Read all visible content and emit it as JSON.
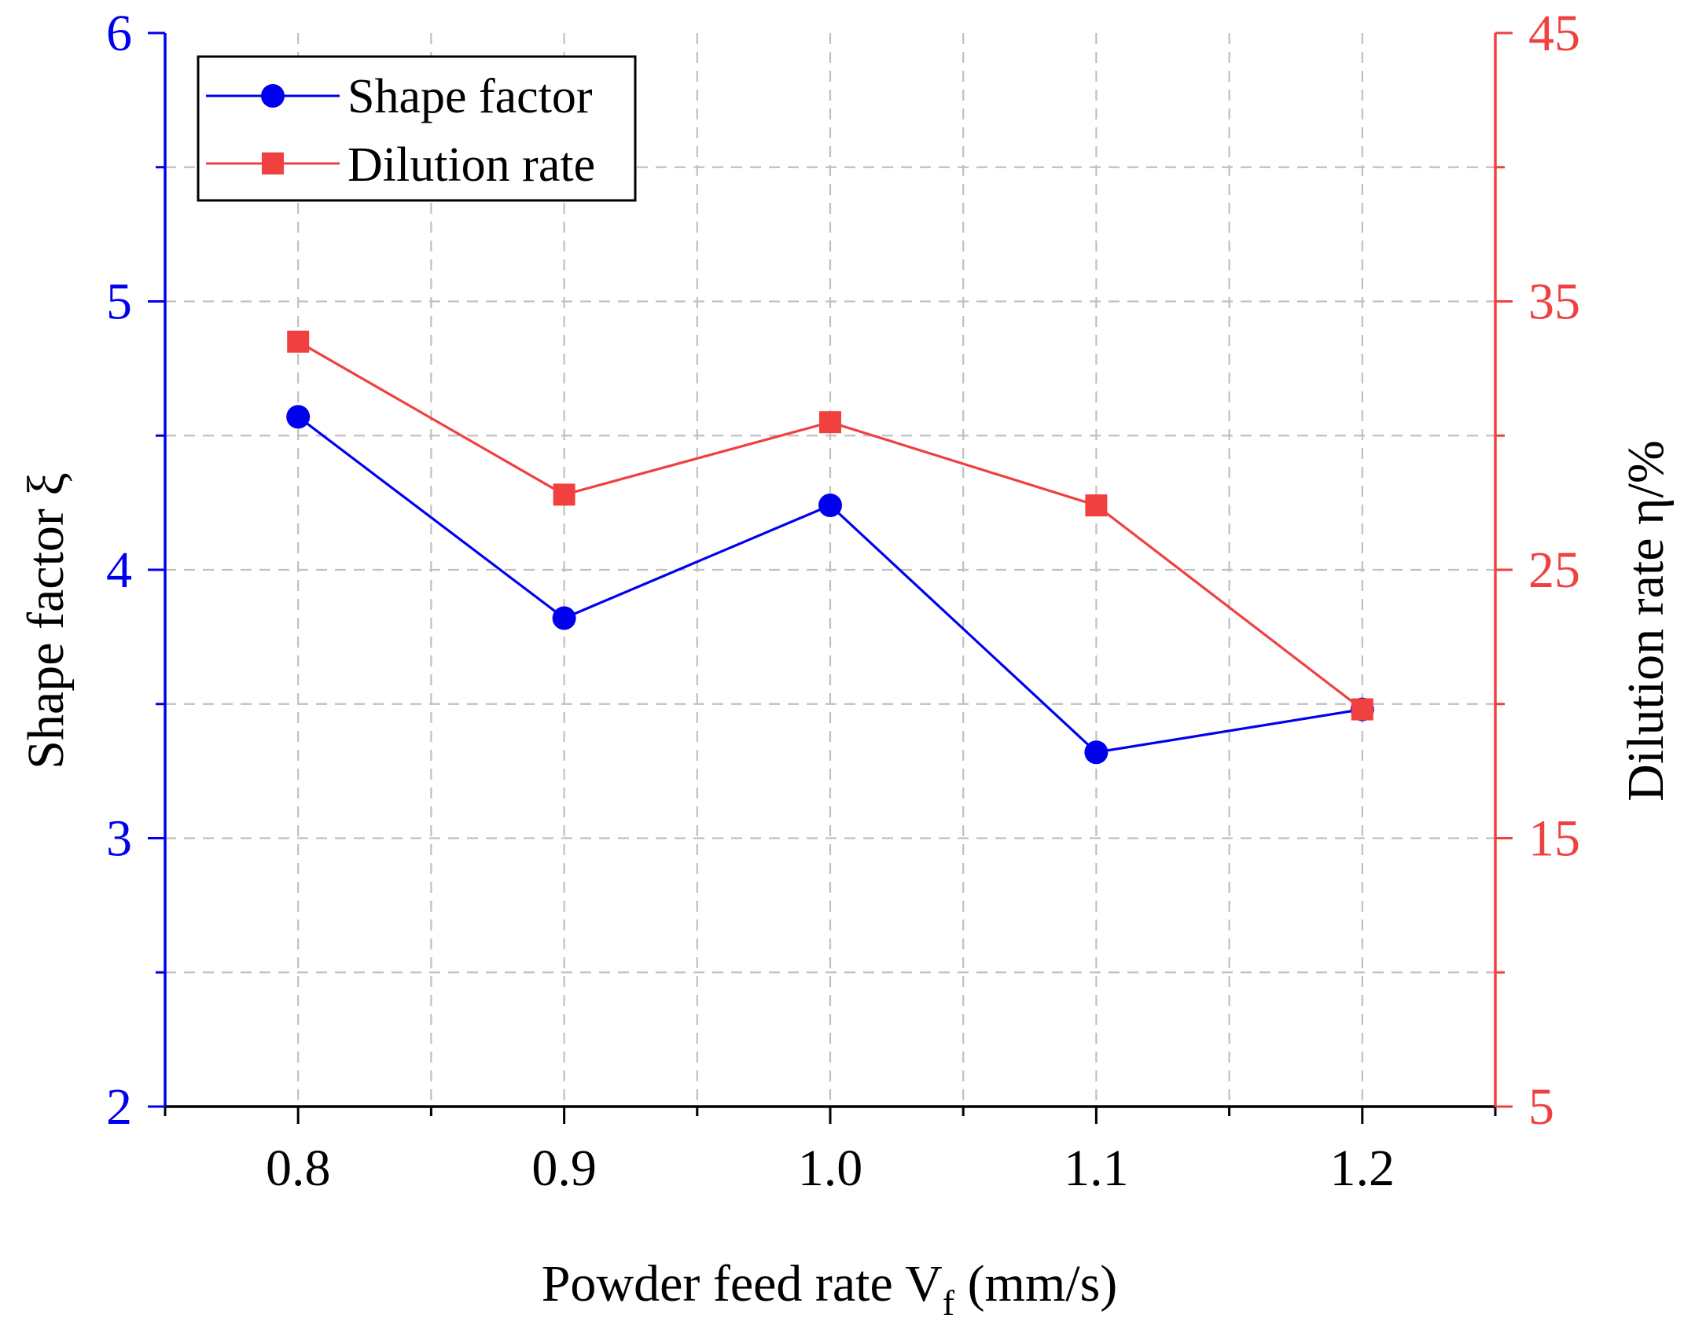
{
  "chart_data": {
    "type": "line",
    "title": "",
    "xlabel": "Powder feed rate V",
    "xlabel_sub": "f",
    "xlabel_unit": " (mm/s)",
    "ylabel_left": "Shape factor ξ",
    "ylabel_right": "Dilution rate η/%",
    "xlim": [
      0.75,
      1.25
    ],
    "ylim_left": [
      2,
      6
    ],
    "ylim_right": [
      5,
      45
    ],
    "x": [
      0.8,
      0.9,
      1.0,
      1.1,
      1.2
    ],
    "x_tick_labels": [
      "0.8",
      "0.9",
      "1.0",
      "1.1",
      "1.2"
    ],
    "y_left_tick_labels": [
      "2",
      "3",
      "4",
      "5",
      "6"
    ],
    "y_right_tick_labels": [
      "5",
      "15",
      "25",
      "35",
      "45"
    ],
    "grid": true,
    "legend_position": "top-left",
    "series": [
      {
        "name": "Shape factor",
        "axis": "left",
        "marker": "circle",
        "color": "#0000ee",
        "values": [
          4.57,
          3.82,
          4.24,
          3.32,
          3.48
        ]
      },
      {
        "name": "Dilution rate",
        "axis": "right",
        "marker": "square",
        "color": "#f04040",
        "values": [
          33.5,
          27.8,
          30.5,
          27.4,
          19.8
        ]
      }
    ],
    "colors": {
      "left_axis": "#0000ee",
      "right_axis": "#f04040",
      "grid": "#c0c0c0",
      "frame": "#000000"
    }
  }
}
